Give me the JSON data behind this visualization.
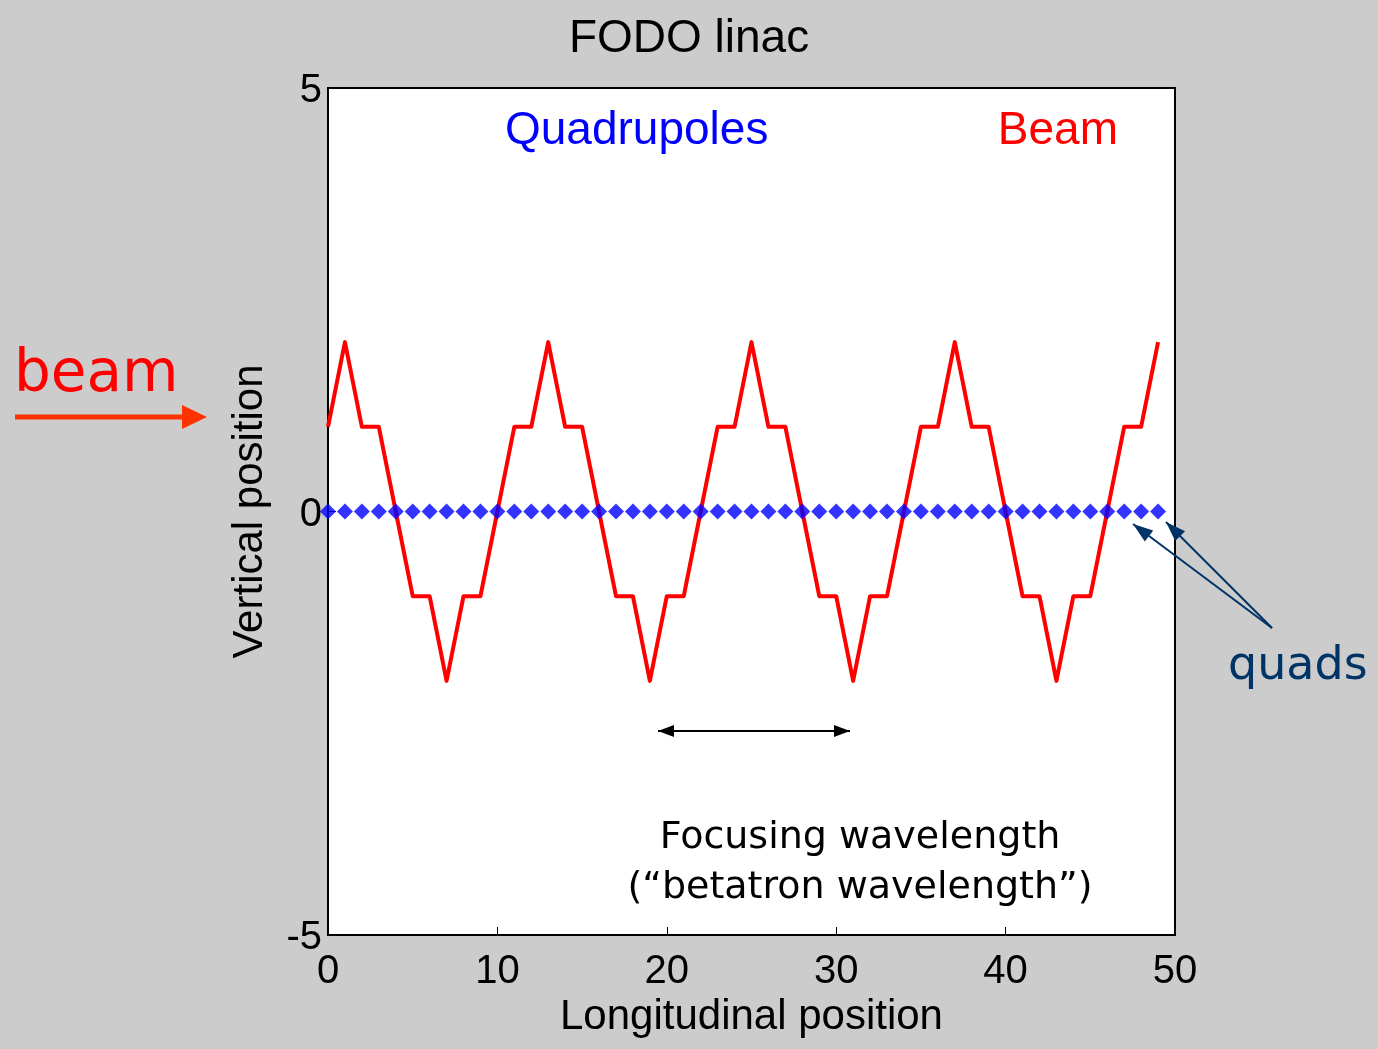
{
  "chart_data": {
    "type": "line",
    "title": "FODO linac",
    "xlabel": "Longitudinal position",
    "ylabel": "Vertical position",
    "xlim": [
      0,
      50
    ],
    "xticks": [
      0,
      10,
      20,
      30,
      40,
      50
    ],
    "ylim": [
      -5,
      5
    ],
    "yticks": [
      -5,
      0,
      5
    ],
    "grid": false,
    "legend": "top",
    "series": [
      {
        "name": "Quadrupoles",
        "type": "scatter",
        "marker": "diamond",
        "color": "#0000ff",
        "x": [
          0,
          1,
          2,
          3,
          4,
          5,
          6,
          7,
          8,
          9,
          10,
          11,
          12,
          13,
          14,
          15,
          16,
          17,
          18,
          19,
          20,
          21,
          22,
          23,
          24,
          25,
          26,
          27,
          28,
          29,
          30,
          31,
          32,
          33,
          34,
          35,
          36,
          37,
          38,
          39,
          40,
          41,
          42,
          43,
          44,
          45,
          46,
          47,
          48,
          49
        ],
        "values": [
          0,
          0,
          0,
          0,
          0,
          0,
          0,
          0,
          0,
          0,
          0,
          0,
          0,
          0,
          0,
          0,
          0,
          0,
          0,
          0,
          0,
          0,
          0,
          0,
          0,
          0,
          0,
          0,
          0,
          0,
          0,
          0,
          0,
          0,
          0,
          0,
          0,
          0,
          0,
          0,
          0,
          0,
          0,
          0,
          0,
          0,
          0,
          0,
          0,
          0
        ]
      },
      {
        "name": "Beam",
        "marker": "none",
        "line_style": "solid",
        "color": "#ff0000",
        "x": [
          0,
          1,
          2,
          3,
          4,
          5,
          6,
          7,
          8,
          9,
          10,
          11,
          12,
          13,
          14,
          15,
          16,
          17,
          18,
          19,
          20,
          21,
          22,
          23,
          24,
          25,
          26,
          27,
          28,
          29,
          30,
          31,
          32,
          33,
          34,
          35,
          36,
          37,
          38,
          39,
          40,
          41,
          42,
          43,
          44,
          45,
          46,
          47,
          48,
          49
        ],
        "values": [
          1,
          2,
          1,
          1,
          0,
          -1,
          -1,
          -2,
          -1,
          -1,
          0,
          1,
          1,
          2,
          1,
          1,
          0,
          -1,
          -1,
          -2,
          -1,
          -1,
          0,
          1,
          1,
          2,
          1,
          1,
          0,
          -1,
          -1,
          -2,
          -1,
          -1,
          0,
          1,
          1,
          2,
          1,
          1,
          0,
          -1,
          -1,
          -2,
          -1,
          -1,
          0,
          1,
          1,
          2
        ]
      }
    ],
    "annotations": [
      "beam",
      "Focusing wavelength\n(“betatron wavelength”)",
      "quads"
    ]
  }
}
